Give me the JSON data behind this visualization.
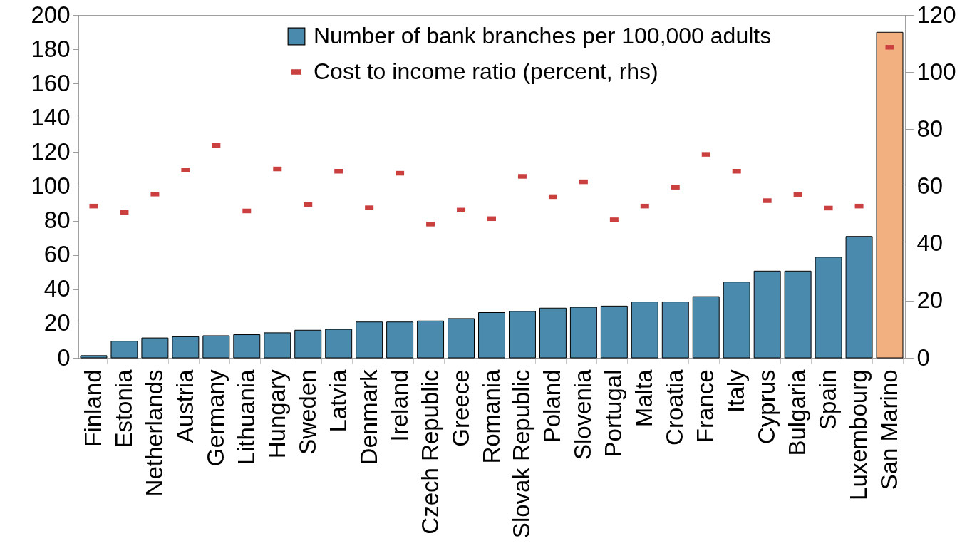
{
  "chart_data": {
    "type": "bar",
    "categories": [
      "Finland",
      "Estonia",
      "Netherlands",
      "Austria",
      "Germany",
      "Lithuania",
      "Hungary",
      "Sweden",
      "Latvia",
      "Denmark",
      "Ireland",
      "Czech Republic",
      "Greece",
      "Romania",
      "Slovak Republic",
      "Poland",
      "Slovenia",
      "Portugal",
      "Malta",
      "Croatia",
      "France",
      "Italy",
      "Cyprus",
      "Bulgaria",
      "Spain",
      "Luxembourg",
      "San Marino"
    ],
    "series": [
      {
        "name": "Number of bank branches per 100,000 adults",
        "color": "#4a8bad",
        "colors": [
          "#4a8bad",
          "#4a8bad",
          "#4a8bad",
          "#4a8bad",
          "#4a8bad",
          "#4a8bad",
          "#4a8bad",
          "#4a8bad",
          "#4a8bad",
          "#4a8bad",
          "#4a8bad",
          "#4a8bad",
          "#4a8bad",
          "#4a8bad",
          "#4a8bad",
          "#4a8bad",
          "#4a8bad",
          "#4a8bad",
          "#4a8bad",
          "#4a8bad",
          "#4a8bad",
          "#4a8bad",
          "#4a8bad",
          "#4a8bad",
          "#4a8bad",
          "#4a8bad",
          "#f2b080"
        ],
        "values": [
          1.3,
          9.7,
          11.6,
          12.3,
          12.9,
          13.5,
          14.6,
          16.1,
          16.6,
          20.9,
          20.9,
          21.5,
          22.9,
          26.4,
          27.1,
          29.0,
          29.5,
          30.2,
          32.6,
          32.6,
          35.7,
          44.2,
          50.6,
          50.6,
          58.7,
          70.8,
          189.9
        ]
      },
      {
        "name": "Cost to income ratio (percent, rhs)",
        "type": "scatter",
        "axis": "y2",
        "color": "#c9403f",
        "values": [
          53.1,
          50.9,
          57.3,
          65.7,
          74.3,
          51.4,
          66.1,
          53.6,
          65.3,
          52.5,
          64.6,
          46.8,
          51.7,
          48.7,
          63.5,
          56.4,
          61.6,
          48.3,
          53.1,
          59.7,
          71.2,
          65.3,
          55.0,
          57.2,
          52.4,
          53.1,
          108.7
        ]
      }
    ],
    "ylim": [
      0,
      200
    ],
    "yticks": [
      0,
      20,
      40,
      60,
      80,
      100,
      120,
      140,
      160,
      180,
      200
    ],
    "y2lim": [
      0,
      120
    ],
    "y2ticks": [
      0,
      20,
      40,
      60,
      80,
      100,
      120
    ],
    "legend": "top right"
  }
}
